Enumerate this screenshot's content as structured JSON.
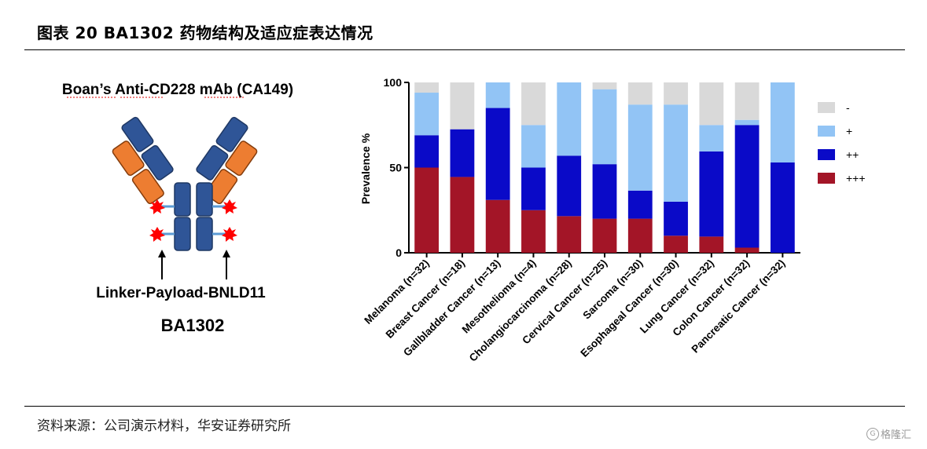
{
  "figure": {
    "title": "图表 20 BA1302 药物结构及适应症表达情况",
    "source": "资料来源：公司演示材料，华安证券研究所",
    "watermark": "格隆汇"
  },
  "diagram": {
    "title": "Boan’s Anti-CD228 mAb (CA149)",
    "linker_label": "Linker-Payload-BNLD11",
    "drug_name": "BA1302",
    "colors": {
      "heavy": "#2f5597",
      "light": "#ed7d31",
      "linker": "#5b9bd5",
      "payload": "#ff0000"
    }
  },
  "chart_data": {
    "type": "bar",
    "stacked": true,
    "ylabel": "Prevalence %",
    "ylim": [
      0,
      100
    ],
    "yticks": [
      "0",
      "50",
      "100"
    ],
    "categories": [
      "Melanoma (n=32)",
      "Breast Cancer (n=18)",
      "Gallbladder Cancer (n=13)",
      "Mesothelioma (n=4)",
      "Cholangiocarcinoma (n=28)",
      "Cervical Cancer (n=25)",
      "Sarcoma (n=30)",
      "Esophageal Cancer (n=30)",
      "Lung Cancer (n=32)",
      "Colon Cancer (n=32)",
      "Pancreatic Cancer (n=32)"
    ],
    "series": [
      {
        "name": "+++",
        "color": "#a31527",
        "values": [
          50,
          44.5,
          31,
          25,
          21.5,
          20,
          20,
          10,
          9.5,
          3,
          0
        ]
      },
      {
        "name": "++",
        "color": "#0a0ac8",
        "values": [
          19,
          28,
          54,
          25,
          35.5,
          32,
          16.5,
          20,
          50,
          72,
          53
        ]
      },
      {
        "name": "+",
        "color": "#92c4f5",
        "values": [
          25,
          0,
          15,
          25,
          43,
          44,
          50.5,
          57,
          15.5,
          3,
          47
        ]
      },
      {
        "name": "-",
        "color": "#d9d9d9",
        "values": [
          6,
          27.5,
          0,
          25,
          0,
          4,
          13,
          13,
          25,
          22,
          0
        ]
      }
    ],
    "legend": {
      "placement": "right",
      "order": [
        "-",
        "+",
        "++",
        "+++"
      ]
    }
  }
}
